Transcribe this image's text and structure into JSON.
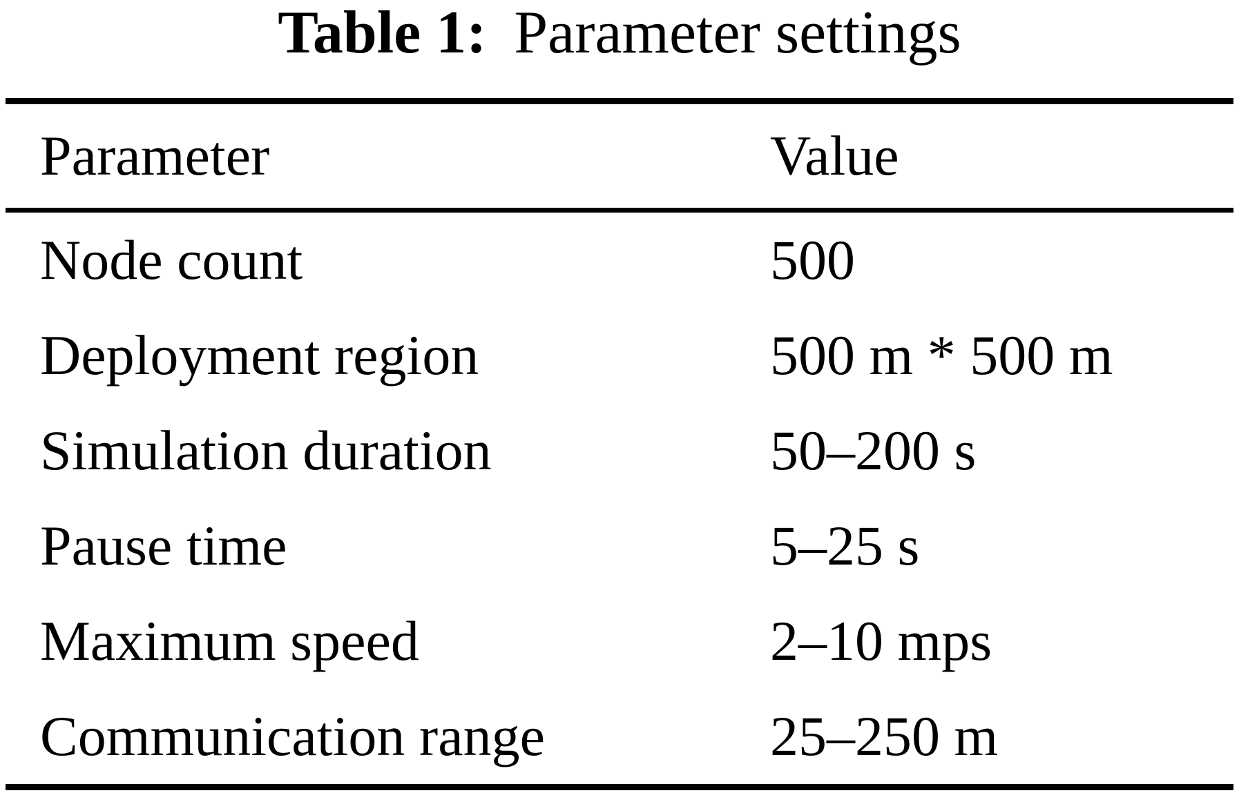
{
  "caption": {
    "label": "Table 1:",
    "title": "Parameter settings"
  },
  "columns": [
    "Parameter",
    "Value"
  ],
  "rows": [
    {
      "parameter": "Node count",
      "value": "500"
    },
    {
      "parameter": "Deployment region",
      "value": "500 m * 500 m"
    },
    {
      "parameter": "Simulation duration",
      "value": "50–200 s"
    },
    {
      "parameter": "Pause time",
      "value": "5–25 s"
    },
    {
      "parameter": "Maximum speed",
      "value": "2–10 mps"
    },
    {
      "parameter": "Communication range",
      "value": "25–250 m"
    }
  ],
  "colors": {
    "text": "#000000",
    "background": "#ffffff",
    "rule": "#000000"
  }
}
